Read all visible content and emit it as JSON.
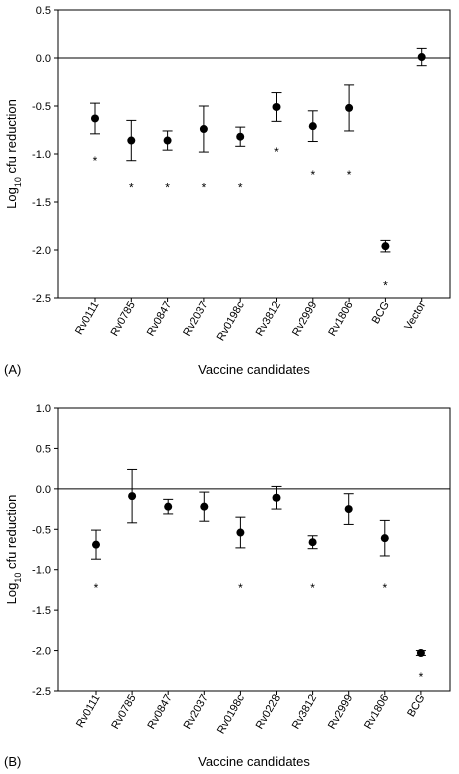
{
  "chart_data": [
    {
      "type": "scatter",
      "panel_label": "(A)",
      "xlabel": "Vaccine candidates",
      "ylabel": "Log",
      "ylabel_sub": "10",
      "ylabel_suffix": " cfu reduction",
      "ylim": [
        -2.5,
        0.5
      ],
      "yticks": [
        "-2.5",
        "-2.0",
        "-1.5",
        "-1.0",
        "-0.5",
        "0.0",
        "0.5"
      ],
      "reference_line": 0,
      "categories": [
        "Rv0111",
        "Rv0785",
        "Rv0847",
        "Rv2037",
        "Rv0198c",
        "Rv3812",
        "Rv2999",
        "Rv1806",
        "BCG",
        "Vector"
      ],
      "values": [
        -0.63,
        -0.86,
        -0.86,
        -0.74,
        -0.82,
        -0.51,
        -0.71,
        -0.52,
        -1.96,
        0.01
      ],
      "errors": [
        0.16,
        0.21,
        0.1,
        0.24,
        0.1,
        0.15,
        0.16,
        0.24,
        0.06,
        0.09
      ],
      "significance": [
        "*",
        "*",
        "*",
        "*",
        "*",
        "*",
        "*",
        "*",
        "*",
        ""
      ],
      "significance_y": [
        -1.05,
        -1.33,
        -1.33,
        -1.33,
        -1.33,
        -0.96,
        -1.2,
        -1.2,
        -2.35,
        null
      ]
    },
    {
      "type": "scatter",
      "panel_label": "(B)",
      "xlabel": "Vaccine candidates",
      "ylabel": "Log",
      "ylabel_sub": "10",
      "ylabel_suffix": " cfu reduction",
      "ylim": [
        -2.5,
        1.0
      ],
      "yticks": [
        "-2.5",
        "-2.0",
        "-1.5",
        "-1.0",
        "-0.5",
        "0.0",
        "0.5",
        "1.0"
      ],
      "reference_line": 0,
      "categories": [
        "Rv0111",
        "Rv0785",
        "Rv0847",
        "Rv2037",
        "Rv0198c",
        "Rv0228",
        "Rv3812",
        "Rv2999",
        "Rv1806",
        "BCG"
      ],
      "values": [
        -0.69,
        -0.09,
        -0.22,
        -0.22,
        -0.54,
        -0.11,
        -0.66,
        -0.25,
        -0.61,
        -2.03
      ],
      "errors": [
        0.18,
        0.33,
        0.09,
        0.18,
        0.19,
        0.14,
        0.08,
        0.19,
        0.22,
        0.03
      ],
      "significance": [
        "*",
        "",
        "",
        "",
        "*",
        "",
        "*",
        "",
        "*",
        "*"
      ],
      "significance_y": [
        -1.2,
        null,
        null,
        null,
        -1.2,
        null,
        -1.2,
        null,
        -1.2,
        -2.3
      ]
    }
  ]
}
